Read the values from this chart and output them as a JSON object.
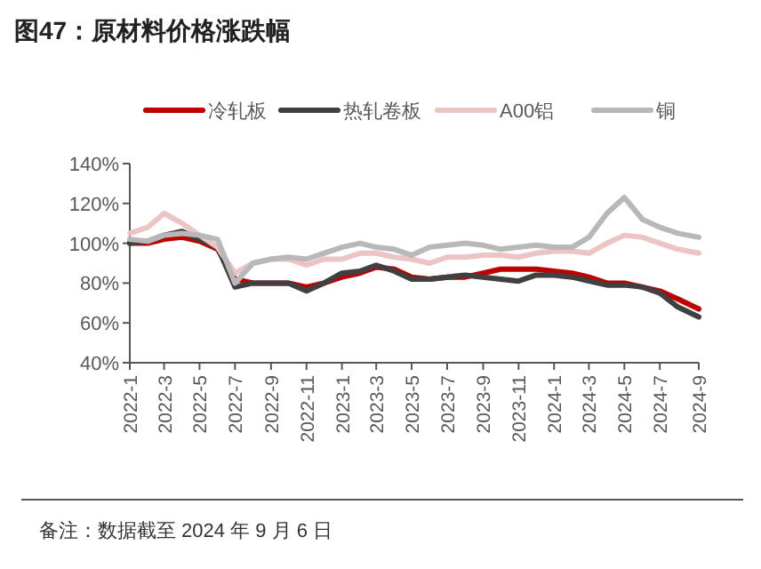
{
  "chart_data": {
    "type": "line",
    "title": "图47：原材料价格涨跌幅",
    "annotations": [
      "备注：数据截至 2024 年 9 月 6 日"
    ],
    "x": [
      "2022-01-01",
      "2022-02-01",
      "2022-03-01",
      "2022-04-01",
      "2022-05-01",
      "2022-06-01",
      "2022-07-01",
      "2022-08-01",
      "2022-09-01",
      "2022-10-01",
      "2022-11-01",
      "2022-12-01",
      "2023-01-01",
      "2023-02-01",
      "2023-03-01",
      "2023-04-01",
      "2023-05-01",
      "2023-06-01",
      "2023-07-01",
      "2023-08-01",
      "2023-09-01",
      "2023-10-01",
      "2023-11-01",
      "2023-12-01",
      "2024-01-01",
      "2024-02-01",
      "2024-03-01",
      "2024-04-01",
      "2024-05-01",
      "2024-06-01",
      "2024-07-01",
      "2024-08-01",
      "2024-09-06"
    ],
    "series": [
      {
        "name": "冷轧板",
        "color": "#c00000",
        "values": [
          100,
          100,
          102,
          103,
          101,
          97,
          82,
          80,
          80,
          80,
          78,
          80,
          83,
          85,
          88,
          87,
          83,
          82,
          83,
          83,
          85,
          87,
          87,
          87,
          86,
          85,
          83,
          80,
          80,
          78,
          76,
          72,
          67
        ]
      },
      {
        "name": "热轧卷板",
        "color": "#404040",
        "values": [
          100,
          101,
          104,
          106,
          102,
          98,
          78,
          80,
          80,
          80,
          76,
          80,
          85,
          86,
          89,
          86,
          82,
          82,
          83,
          84,
          83,
          82,
          81,
          84,
          84,
          83,
          81,
          79,
          79,
          78,
          75,
          68,
          63
        ]
      },
      {
        "name": "A00铝",
        "color": "#ecc4c4",
        "values": [
          105,
          108,
          115,
          110,
          104,
          98,
          85,
          90,
          92,
          92,
          89,
          92,
          92,
          95,
          95,
          93,
          92,
          90,
          93,
          93,
          94,
          94,
          93,
          95,
          96,
          96,
          95,
          100,
          104,
          103,
          100,
          97,
          95
        ]
      },
      {
        "name": "铜",
        "color": "#b8b8b8",
        "values": [
          102,
          101,
          104,
          105,
          104,
          102,
          80,
          90,
          92,
          93,
          92,
          95,
          98,
          100,
          98,
          97,
          94,
          98,
          99,
          100,
          99,
          97,
          98,
          99,
          98,
          98,
          103,
          115,
          123,
          112,
          108,
          105,
          103
        ]
      }
    ],
    "xlim": [
      "2022-01-01",
      "2024-09-06"
    ],
    "xticks": [
      {
        "value": "2022-01-01",
        "label": "2022-1"
      },
      {
        "value": "2022-03-01",
        "label": "2022-3"
      },
      {
        "value": "2022-05-01",
        "label": "2022-5"
      },
      {
        "value": "2022-07-01",
        "label": "2022-7"
      },
      {
        "value": "2022-09-01",
        "label": "2022-9"
      },
      {
        "value": "2022-11-01",
        "label": "2022-11"
      },
      {
        "value": "2023-01-01",
        "label": "2023-1"
      },
      {
        "value": "2023-03-01",
        "label": "2023-3"
      },
      {
        "value": "2023-05-01",
        "label": "2023-5"
      },
      {
        "value": "2023-07-01",
        "label": "2023-7"
      },
      {
        "value": "2023-09-01",
        "label": "2023-9"
      },
      {
        "value": "2023-11-01",
        "label": "2023-11"
      },
      {
        "value": "2024-01-01",
        "label": "2024-1"
      },
      {
        "value": "2024-03-01",
        "label": "2024-3"
      },
      {
        "value": "2024-05-01",
        "label": "2024-5"
      },
      {
        "value": "2024-07-01",
        "label": "2024-7"
      },
      {
        "value": "2024-09-06",
        "label": "2024-9"
      }
    ],
    "ylim": [
      40,
      140
    ],
    "yticks": [
      {
        "value": 40,
        "label": "40%"
      },
      {
        "value": 60,
        "label": "60%"
      },
      {
        "value": 80,
        "label": "80%"
      },
      {
        "value": 100,
        "label": "100%"
      },
      {
        "value": 120,
        "label": "120%"
      },
      {
        "value": 140,
        "label": "140%"
      }
    ],
    "grid": false,
    "legend": "top",
    "marker": "none",
    "line_style": "solid"
  }
}
